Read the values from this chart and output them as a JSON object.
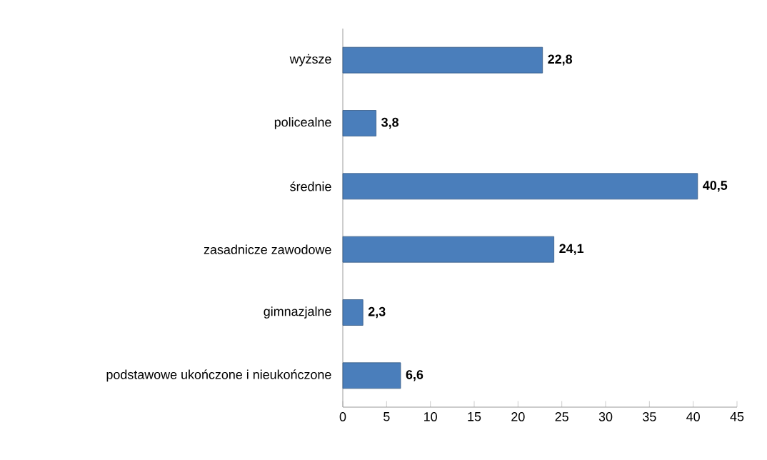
{
  "chart_data": {
    "type": "bar",
    "orientation": "horizontal",
    "categories": [
      "wyższe",
      "policealne",
      "średnie",
      "zasadnicze zawodowe",
      "gimnazjalne",
      "podstawowe ukończone i nieukończone"
    ],
    "values": [
      22.8,
      3.8,
      40.5,
      24.1,
      2.3,
      6.6
    ],
    "value_labels": [
      "22,8",
      "3,8",
      "40,5",
      "24,1",
      "2,3",
      "6,6"
    ],
    "color": "#4a7ebb",
    "xlim": [
      0,
      45
    ],
    "xticks": [
      0,
      5,
      10,
      15,
      20,
      25,
      30,
      35,
      40,
      45
    ]
  }
}
